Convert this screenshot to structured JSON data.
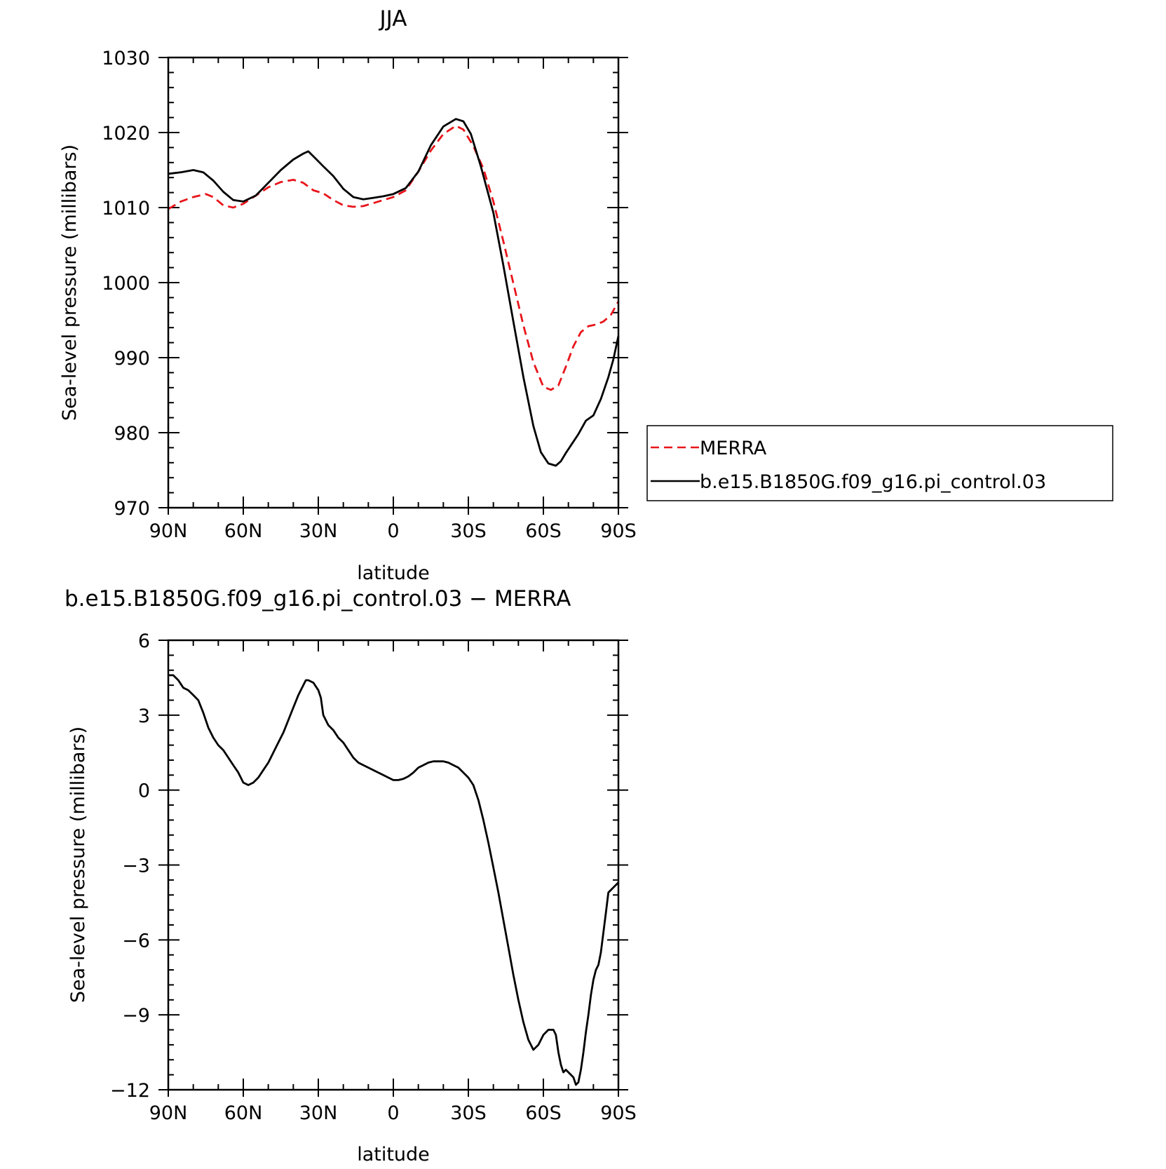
{
  "chart_data": [
    {
      "type": "line",
      "title": "JJA",
      "xlabel": "latitude",
      "ylabel": "Sea-level pressure (millibars)",
      "xlim": [
        90,
        -90
      ],
      "ylim": [
        970,
        1030
      ],
      "x_ticks": [
        90,
        60,
        30,
        0,
        -30,
        -60,
        -90
      ],
      "x_tick_labels": [
        "90N",
        "60N",
        "30N",
        "0",
        "30S",
        "60S",
        "90S"
      ],
      "y_ticks": [
        970,
        980,
        990,
        1000,
        1010,
        1020,
        1030
      ],
      "y_tick_labels": [
        "970",
        "980",
        "990",
        "1000",
        "1010",
        "1020",
        "1030"
      ],
      "legend": {
        "placement": "right",
        "entries": [
          "MERRA",
          "b.e15.B1850G.f09_g16.pi_control.03"
        ]
      },
      "series": [
        {
          "name": "MERRA",
          "color": "#e8151b",
          "dash": "dashed",
          "x": [
            90,
            85,
            80,
            75,
            72,
            68,
            64,
            60,
            55,
            50,
            45,
            40,
            36,
            32,
            28,
            24,
            20,
            16,
            12,
            8,
            4,
            0,
            -5,
            -10,
            -15,
            -20,
            -25,
            -28,
            -32,
            -36,
            -40,
            -44,
            -48,
            -52,
            -56,
            -60,
            -63,
            -66,
            -69,
            -72,
            -75,
            -78,
            -81,
            -84,
            -87,
            -90
          ],
          "y": [
            1009.8,
            1010.8,
            1011.4,
            1011.8,
            1011.4,
            1010.3,
            1010.0,
            1010.5,
            1011.6,
            1012.7,
            1013.4,
            1013.7,
            1013.3,
            1012.3,
            1011.9,
            1011.0,
            1010.3,
            1010.1,
            1010.2,
            1010.6,
            1011.0,
            1011.4,
            1012.3,
            1014.8,
            1017.6,
            1019.8,
            1020.9,
            1020.4,
            1018.2,
            1015.2,
            1010.8,
            1005.5,
            999.9,
            994.3,
            989.4,
            986.1,
            985.7,
            986.3,
            988.8,
            991.5,
            993.4,
            994.2,
            994.4,
            994.8,
            995.7,
            997.5
          ]
        },
        {
          "name": "b.e15.B1850G.f09_g16.pi_control.03",
          "color": "#000000",
          "dash": "solid",
          "x": [
            90,
            85,
            80,
            76,
            72,
            68,
            64,
            60,
            55,
            50,
            45,
            40,
            36,
            34,
            31,
            28,
            24,
            20,
            16,
            12,
            8,
            4,
            0,
            -5,
            -10,
            -15,
            -20,
            -25,
            -28,
            -31,
            -35,
            -40,
            -44,
            -48,
            -52,
            -56,
            -59,
            -62,
            -65,
            -67,
            -69,
            -71,
            -74,
            -77,
            -80,
            -83,
            -86,
            -88,
            -90
          ],
          "y": [
            1014.5,
            1014.7,
            1015.0,
            1014.7,
            1013.6,
            1012.1,
            1011.0,
            1010.8,
            1011.6,
            1013.3,
            1015.0,
            1016.4,
            1017.2,
            1017.5,
            1016.5,
            1015.5,
            1014.2,
            1012.5,
            1011.4,
            1011.1,
            1011.3,
            1011.5,
            1011.8,
            1012.6,
            1014.8,
            1018.3,
            1020.8,
            1021.8,
            1021.5,
            1019.8,
            1015.5,
            1009.3,
            1002.3,
            994.8,
            987.4,
            980.9,
            977.4,
            975.9,
            975.6,
            976.2,
            977.3,
            978.3,
            979.8,
            981.6,
            982.3,
            984.5,
            987.4,
            989.8,
            992.9
          ]
        }
      ]
    },
    {
      "type": "line",
      "title": "b.e15.B1850G.f09_g16.pi_control.03 − MERRA",
      "xlabel": "latitude",
      "ylabel": "Sea-level pressure (millibars)",
      "xlim": [
        90,
        -90
      ],
      "ylim": [
        -12,
        6
      ],
      "x_ticks": [
        90,
        60,
        30,
        0,
        -30,
        -60,
        -90
      ],
      "x_tick_labels": [
        "90N",
        "60N",
        "30N",
        "0",
        "30S",
        "60S",
        "90S"
      ],
      "y_ticks": [
        -12,
        -9,
        -6,
        -3,
        0,
        3,
        6
      ],
      "y_tick_labels": [
        "−12",
        "−9",
        "−6",
        "−3",
        "0",
        "3",
        "6"
      ],
      "series": [
        {
          "color": "#000000",
          "dash": "solid",
          "x": [
            90,
            88,
            86,
            84,
            82,
            80,
            78,
            76,
            74,
            72,
            70,
            68,
            66,
            64,
            62,
            60,
            58,
            56,
            54,
            52,
            50,
            48,
            46,
            44,
            42,
            40,
            38,
            36,
            35,
            34,
            32,
            30,
            29,
            28,
            26,
            24,
            22,
            20,
            18,
            16,
            14,
            12,
            10,
            8,
            6,
            4,
            2,
            0,
            -2,
            -4,
            -6,
            -8,
            -10,
            -12,
            -14,
            -16,
            -18,
            -20,
            -22,
            -24,
            -26,
            -28,
            -30,
            -32,
            -34,
            -36,
            -38,
            -40,
            -42,
            -44,
            -46,
            -48,
            -50,
            -52,
            -54,
            -56,
            -58,
            -60,
            -62,
            -64,
            -65,
            -66,
            -67,
            -68,
            -69,
            -70,
            -71,
            -72,
            -73,
            -74,
            -75,
            -76,
            -77,
            -78,
            -79,
            -80,
            -81,
            -82,
            -83,
            -84,
            -85,
            -86,
            -87,
            -88,
            -89,
            -90
          ],
          "y": [
            4.6,
            4.6,
            4.4,
            4.1,
            4.0,
            3.8,
            3.6,
            3.1,
            2.5,
            2.1,
            1.8,
            1.6,
            1.3,
            1.0,
            0.7,
            0.3,
            0.2,
            0.3,
            0.5,
            0.8,
            1.1,
            1.5,
            1.9,
            2.3,
            2.8,
            3.3,
            3.8,
            4.2,
            4.4,
            4.4,
            4.3,
            4.0,
            3.7,
            3.0,
            2.6,
            2.4,
            2.1,
            1.9,
            1.6,
            1.3,
            1.1,
            1.0,
            0.9,
            0.8,
            0.7,
            0.6,
            0.5,
            0.4,
            0.4,
            0.45,
            0.55,
            0.7,
            0.9,
            1.0,
            1.1,
            1.15,
            1.15,
            1.15,
            1.1,
            1.0,
            0.9,
            0.7,
            0.5,
            0.2,
            -0.4,
            -1.2,
            -2.1,
            -3.1,
            -4.1,
            -5.2,
            -6.3,
            -7.4,
            -8.4,
            -9.3,
            -10.0,
            -10.4,
            -10.2,
            -9.8,
            -9.6,
            -9.6,
            -9.8,
            -10.5,
            -11.0,
            -11.3,
            -11.2,
            -11.3,
            -11.4,
            -11.5,
            -11.8,
            -11.7,
            -11.2,
            -10.5,
            -9.7,
            -9.0,
            -8.2,
            -7.6,
            -7.2,
            -7.0,
            -6.5,
            -5.7,
            -4.9,
            -4.1,
            -4.0,
            -3.9,
            -3.8,
            -3.7
          ]
        }
      ]
    }
  ]
}
